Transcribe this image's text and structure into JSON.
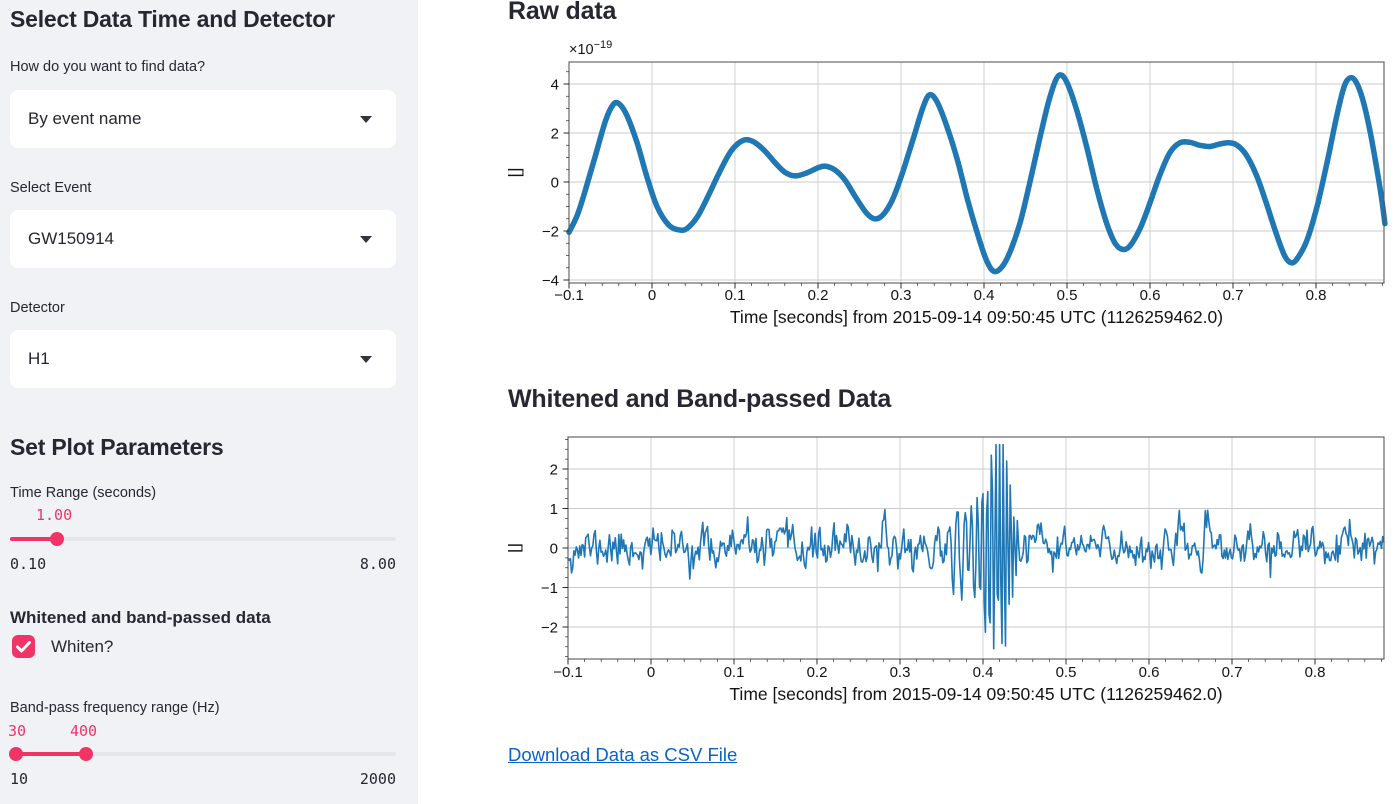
{
  "sidebar": {
    "section1_title": "Select Data Time and Detector",
    "find_label": "How do you want to find data?",
    "find_value": "By event name",
    "event_label": "Select Event",
    "event_value": "GW150914",
    "detector_label": "Detector",
    "detector_value": "H1",
    "section2_title": "Set Plot Parameters",
    "time_range": {
      "label": "Time Range (seconds)",
      "value": "1.00",
      "min": "0.10",
      "max": "8.00"
    },
    "whiten_section_label": "Whitened and band-passed data",
    "whiten_checkbox_label": "Whiten?",
    "bandpass": {
      "label": "Band-pass frequency range (Hz)",
      "low": "30",
      "high": "400",
      "min": "10",
      "max": "2000"
    }
  },
  "main": {
    "raw_title": "Raw data",
    "whitened_title": "Whitened and Band-passed Data",
    "download_link": "Download Data as CSV File"
  },
  "colors": {
    "accent": "#f23366",
    "line": "#1f77b4",
    "link": "#0b63c5",
    "sidebar_bg": "#f0f2f6",
    "text": "#262730"
  },
  "chart_data": [
    {
      "type": "line",
      "title": "Raw data",
      "ylabel": "[]",
      "xlabel": "Time [seconds] from 2015-09-14 09:50:45 UTC (1126259462.0)",
      "offset_mantissa": "×10",
      "offset_exponent": "−19",
      "unit_scale": "1e-19",
      "xlim": [
        -0.1,
        0.883
      ],
      "ylim": [
        -4.12,
        4.9
      ],
      "grid": true,
      "stroke_width": 5.5,
      "smooth": true,
      "xticks": [
        {
          "v": -0.1,
          "label": "−0.1"
        },
        {
          "v": 0,
          "label": "0"
        },
        {
          "v": 0.1,
          "label": "0.1"
        },
        {
          "v": 0.2,
          "label": "0.2"
        },
        {
          "v": 0.3,
          "label": "0.3"
        },
        {
          "v": 0.4,
          "label": "0.4"
        },
        {
          "v": 0.5,
          "label": "0.5"
        },
        {
          "v": 0.6,
          "label": "0.6"
        },
        {
          "v": 0.7,
          "label": "0.7"
        },
        {
          "v": 0.8,
          "label": "0.8"
        }
      ],
      "yticks": [
        {
          "v": -4,
          "label": "−4"
        },
        {
          "v": -2,
          "label": "−2"
        },
        {
          "v": 0,
          "label": "0"
        },
        {
          "v": 2,
          "label": "2"
        },
        {
          "v": 4,
          "label": "4"
        }
      ],
      "xminor": 0.02,
      "yminor": 0.5,
      "points": [
        [
          -0.1,
          -2.05
        ],
        [
          -0.09,
          -1.35
        ],
        [
          -0.08,
          -0.3
        ],
        [
          -0.068,
          1.1
        ],
        [
          -0.056,
          2.5
        ],
        [
          -0.047,
          3.15
        ],
        [
          -0.04,
          3.2
        ],
        [
          -0.03,
          2.7
        ],
        [
          -0.018,
          1.6
        ],
        [
          -0.006,
          0.2
        ],
        [
          0.006,
          -1.0
        ],
        [
          0.02,
          -1.75
        ],
        [
          0.032,
          -1.95
        ],
        [
          0.042,
          -1.9
        ],
        [
          0.055,
          -1.4
        ],
        [
          0.068,
          -0.55
        ],
        [
          0.082,
          0.45
        ],
        [
          0.096,
          1.3
        ],
        [
          0.11,
          1.7
        ],
        [
          0.122,
          1.65
        ],
        [
          0.135,
          1.3
        ],
        [
          0.148,
          0.8
        ],
        [
          0.16,
          0.4
        ],
        [
          0.172,
          0.25
        ],
        [
          0.185,
          0.35
        ],
        [
          0.198,
          0.55
        ],
        [
          0.208,
          0.65
        ],
        [
          0.22,
          0.5
        ],
        [
          0.232,
          0.1
        ],
        [
          0.245,
          -0.6
        ],
        [
          0.258,
          -1.25
        ],
        [
          0.268,
          -1.5
        ],
        [
          0.278,
          -1.35
        ],
        [
          0.29,
          -0.7
        ],
        [
          0.302,
          0.4
        ],
        [
          0.315,
          1.8
        ],
        [
          0.326,
          3.0
        ],
        [
          0.334,
          3.55
        ],
        [
          0.343,
          3.3
        ],
        [
          0.355,
          2.3
        ],
        [
          0.368,
          0.9
        ],
        [
          0.38,
          -0.7
        ],
        [
          0.392,
          -2.1
        ],
        [
          0.403,
          -3.2
        ],
        [
          0.412,
          -3.65
        ],
        [
          0.422,
          -3.45
        ],
        [
          0.432,
          -2.8
        ],
        [
          0.444,
          -1.6
        ],
        [
          0.456,
          0.1
        ],
        [
          0.468,
          1.9
        ],
        [
          0.478,
          3.3
        ],
        [
          0.487,
          4.2
        ],
        [
          0.494,
          4.35
        ],
        [
          0.502,
          3.9
        ],
        [
          0.512,
          2.9
        ],
        [
          0.524,
          1.4
        ],
        [
          0.536,
          -0.3
        ],
        [
          0.548,
          -1.7
        ],
        [
          0.558,
          -2.5
        ],
        [
          0.567,
          -2.75
        ],
        [
          0.576,
          -2.6
        ],
        [
          0.588,
          -1.9
        ],
        [
          0.6,
          -0.85
        ],
        [
          0.612,
          0.3
        ],
        [
          0.624,
          1.2
        ],
        [
          0.636,
          1.6
        ],
        [
          0.648,
          1.62
        ],
        [
          0.66,
          1.5
        ],
        [
          0.672,
          1.45
        ],
        [
          0.684,
          1.55
        ],
        [
          0.695,
          1.6
        ],
        [
          0.705,
          1.5
        ],
        [
          0.716,
          1.1
        ],
        [
          0.728,
          0.3
        ],
        [
          0.74,
          -0.85
        ],
        [
          0.752,
          -2.1
        ],
        [
          0.762,
          -3.0
        ],
        [
          0.77,
          -3.3
        ],
        [
          0.778,
          -3.1
        ],
        [
          0.79,
          -2.3
        ],
        [
          0.802,
          -0.9
        ],
        [
          0.814,
          0.9
        ],
        [
          0.825,
          2.7
        ],
        [
          0.834,
          3.9
        ],
        [
          0.841,
          4.25
        ],
        [
          0.848,
          4.1
        ],
        [
          0.856,
          3.4
        ],
        [
          0.865,
          2.1
        ],
        [
          0.874,
          0.4
        ],
        [
          0.88,
          -0.9
        ],
        [
          0.883,
          -1.7
        ]
      ]
    },
    {
      "type": "line",
      "title": "Whitened and Band-passed Data",
      "ylabel": "[]",
      "xlabel": "Time [seconds] from 2015-09-14 09:50:45 UTC (1126259462.0)",
      "xlim": [
        -0.1,
        0.883
      ],
      "ylim": [
        -2.81,
        2.81
      ],
      "grid": true,
      "zero_line": true,
      "stroke_width": 1.6,
      "smooth": false,
      "xticks": [
        {
          "v": -0.1,
          "label": "−0.1"
        },
        {
          "v": 0,
          "label": "0"
        },
        {
          "v": 0.1,
          "label": "0.1"
        },
        {
          "v": 0.2,
          "label": "0.2"
        },
        {
          "v": 0.3,
          "label": "0.3"
        },
        {
          "v": 0.4,
          "label": "0.4"
        },
        {
          "v": 0.5,
          "label": "0.5"
        },
        {
          "v": 0.6,
          "label": "0.6"
        },
        {
          "v": 0.7,
          "label": "0.7"
        },
        {
          "v": 0.8,
          "label": "0.8"
        }
      ],
      "yticks": [
        {
          "v": -2,
          "label": "−2"
        },
        {
          "v": -1,
          "label": "−1"
        },
        {
          "v": 0,
          "label": "0"
        },
        {
          "v": 1,
          "label": "1"
        },
        {
          "v": 2,
          "label": "2"
        }
      ],
      "xminor": 0.02,
      "yminor": 0.25,
      "noise": {
        "seed": 11,
        "n": 690,
        "sigma": 0.42,
        "clip": [
          -2.55,
          2.62
        ]
      },
      "burst": {
        "center": 0.423,
        "amp": 2.5,
        "sigma_rise": 0.022,
        "sigma_fall": 0.013,
        "center2": 0.385,
        "amp2": 1.1,
        "sigma2": 0.04,
        "f0": 40,
        "f1": 230,
        "sweep_start": 0.3,
        "peak_value": 2.6,
        "trough_value": -2.5
      }
    }
  ]
}
